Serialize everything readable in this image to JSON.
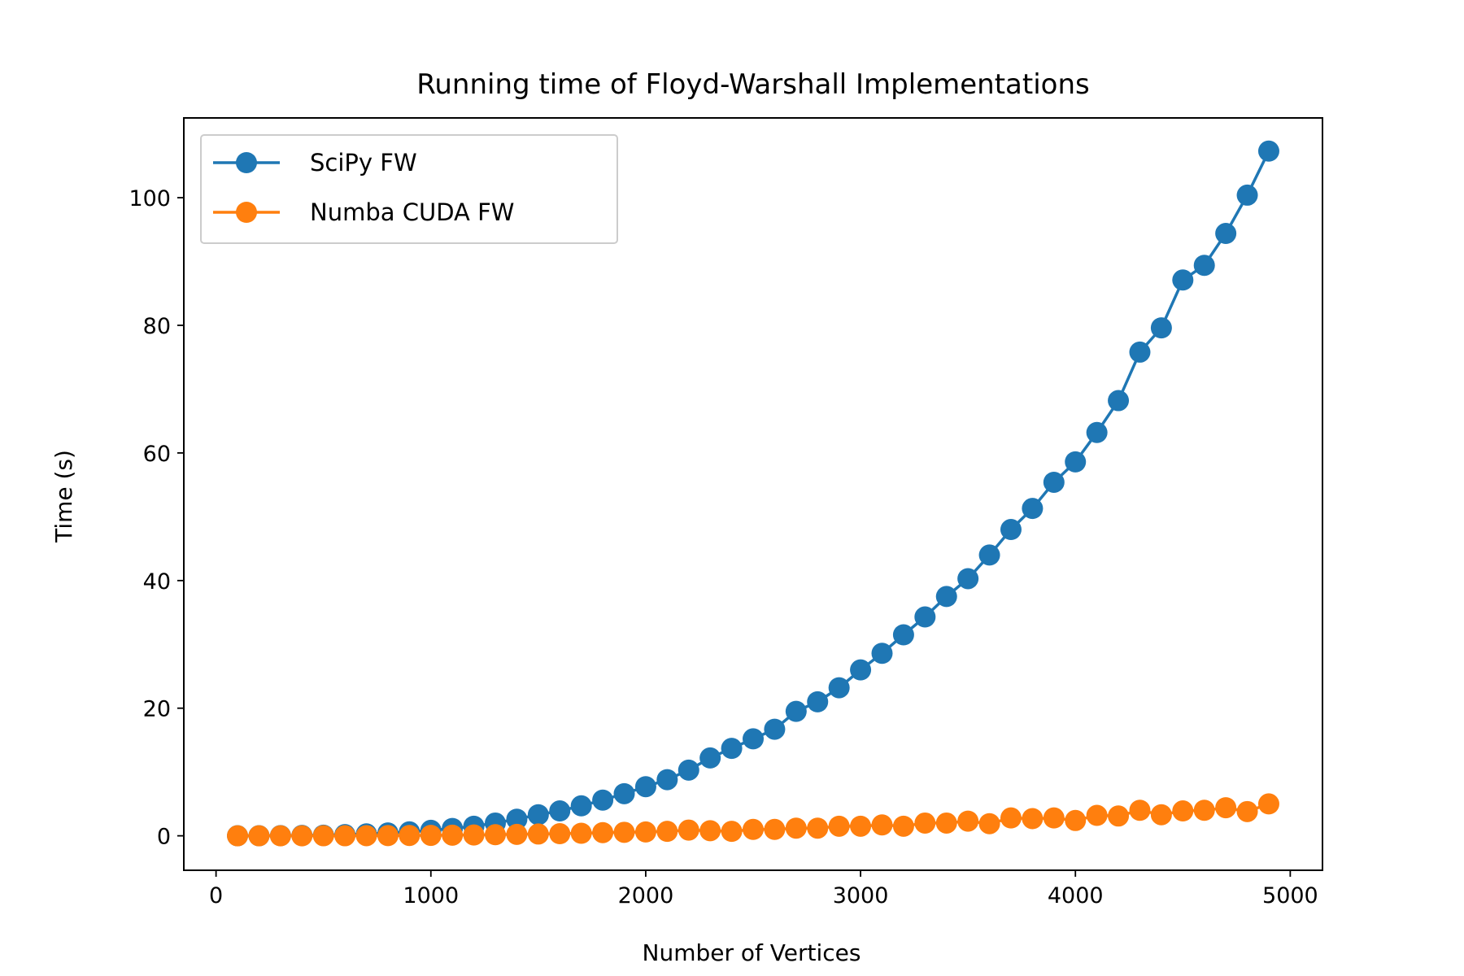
{
  "chart_data": {
    "type": "line",
    "title": "Running time of Floyd-Warshall Implementations",
    "xlabel": "Number of Vertices",
    "ylabel": "Time (s)",
    "xlim": [
      -150,
      5150
    ],
    "ylim": [
      -5.4,
      112.5
    ],
    "xticks": [
      0,
      1000,
      2000,
      3000,
      4000,
      5000
    ],
    "yticks": [
      0,
      20,
      40,
      60,
      80,
      100
    ],
    "grid": false,
    "legend_position": "upper-left",
    "x": [
      100,
      200,
      300,
      400,
      500,
      600,
      700,
      800,
      900,
      1000,
      1100,
      1200,
      1300,
      1400,
      1500,
      1600,
      1700,
      1800,
      1900,
      2000,
      2100,
      2200,
      2300,
      2400,
      2500,
      2600,
      2700,
      2800,
      2900,
      3000,
      3100,
      3200,
      3300,
      3400,
      3500,
      3600,
      3700,
      3800,
      3900,
      4000,
      4100,
      4200,
      4300,
      4400,
      4500,
      4600,
      4700,
      4800,
      4900
    ],
    "series": [
      {
        "name": "SciPy FW",
        "color": "#1f77b4",
        "values": [
          0.01,
          0.01,
          0.03,
          0.06,
          0.1,
          0.19,
          0.3,
          0.44,
          0.62,
          0.86,
          1.15,
          1.5,
          2.0,
          2.6,
          3.3,
          3.9,
          4.7,
          5.6,
          6.6,
          7.7,
          8.8,
          10.3,
          12.2,
          13.7,
          15.2,
          16.7,
          19.5,
          21.0,
          23.2,
          26.0,
          28.6,
          31.5,
          34.3,
          37.5,
          40.3,
          44.0,
          48.0,
          51.3,
          55.4,
          58.6,
          63.2,
          68.2,
          75.8,
          79.6,
          87.1,
          89.4,
          94.4,
          100.4,
          107.3
        ]
      },
      {
        "name": "Numba CUDA FW",
        "color": "#ff7f0e",
        "values": [
          0.0,
          0.0,
          0.0,
          0.0,
          0.01,
          0.01,
          0.02,
          0.03,
          0.05,
          0.07,
          0.1,
          0.13,
          0.17,
          0.23,
          0.28,
          0.33,
          0.4,
          0.5,
          0.55,
          0.6,
          0.7,
          0.9,
          0.8,
          0.7,
          1.0,
          1.0,
          1.2,
          1.2,
          1.5,
          1.5,
          1.7,
          1.5,
          2.0,
          2.0,
          2.3,
          1.9,
          2.8,
          2.7,
          2.8,
          2.4,
          3.2,
          3.1,
          4.0,
          3.3,
          3.9,
          4.0,
          4.4,
          3.8,
          5.0
        ]
      }
    ]
  }
}
